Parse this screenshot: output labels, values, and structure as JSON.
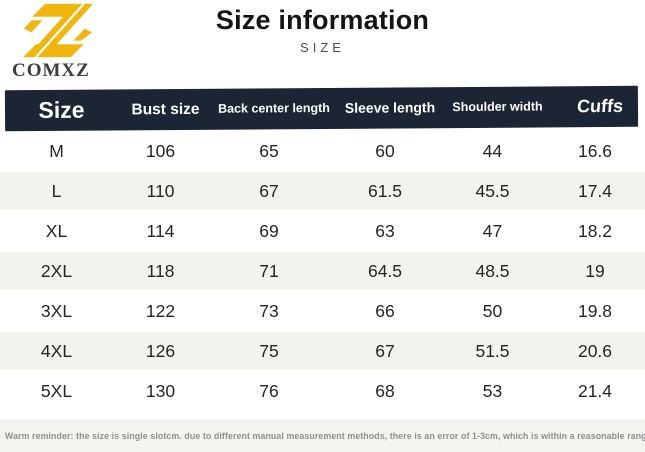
{
  "logo": {
    "brand": "COMXZ",
    "icon": "stylized-z-mark"
  },
  "header": {
    "title": "Size information",
    "subtitle": "SIZE"
  },
  "table": {
    "columns": [
      "Size",
      "Bust size",
      "Back center length",
      "Sleeve length",
      "Shoulder width",
      "Cuffs"
    ],
    "rows": [
      {
        "size": "M",
        "values": [
          "106",
          "65",
          "60",
          "44",
          "16.6"
        ]
      },
      {
        "size": "L",
        "values": [
          "110",
          "67",
          "61.5",
          "45.5",
          "17.4"
        ]
      },
      {
        "size": "XL",
        "values": [
          "114",
          "69",
          "63",
          "47",
          "18.2"
        ]
      },
      {
        "size": "2XL",
        "values": [
          "118",
          "71",
          "64.5",
          "48.5",
          "19"
        ]
      },
      {
        "size": "3XL",
        "values": [
          "122",
          "73",
          "66",
          "50",
          "19.8"
        ]
      },
      {
        "size": "4XL",
        "values": [
          "126",
          "75",
          "67",
          "51.5",
          "20.6"
        ]
      },
      {
        "size": "5XL",
        "values": [
          "130",
          "76",
          "68",
          "53",
          "21.4"
        ]
      }
    ]
  },
  "footer": {
    "note": "Warm reminder: the size is single slotcm. due to different manual measurement methods, there is an error of 1-3cm, which is within a reasonable range"
  },
  "colors": {
    "header_bg": "#1b2533",
    "stripe": "#f4f2ef",
    "footer_bg": "#f5f3f0",
    "accent": "#f2b50d"
  }
}
